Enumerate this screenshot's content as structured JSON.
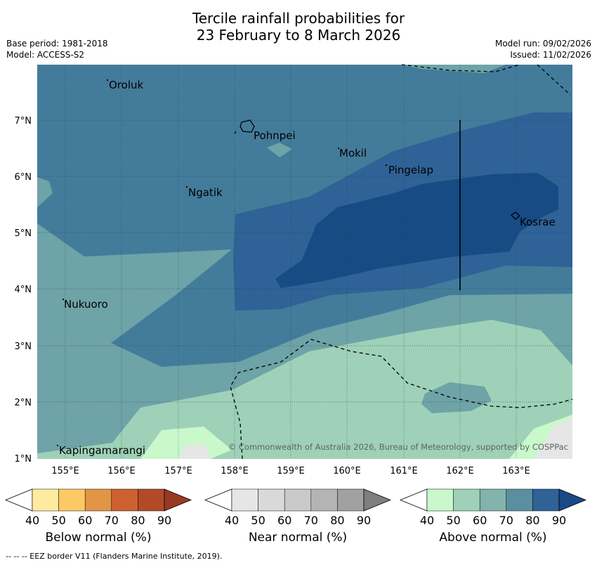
{
  "header": {
    "title_line1": "Tercile rainfall probabilities for",
    "title_line2": "23 February to 8 March 2026",
    "base_period": "Base period: 1981-2018",
    "model": "Model: ACCESS-S2",
    "model_run": "Model run: 09/02/2026",
    "issued": "Issued: 11/02/2026"
  },
  "map": {
    "lon_ticks": [
      "155°E",
      "156°E",
      "157°E",
      "158°E",
      "159°E",
      "160°E",
      "161°E",
      "162°E",
      "163°E"
    ],
    "lat_ticks": [
      "7°N",
      "6°N",
      "5°N",
      "4°N",
      "3°N",
      "2°N",
      "1°N"
    ],
    "places": [
      "Oroluk",
      "Pohnpei",
      "Mokil",
      "Pingelap",
      "Ngatik",
      "Kosrae",
      "Nukuoro",
      "Kapingamarangi"
    ],
    "copyright": "© Commonwealth of Australia 2026, Bureau of Meteorology, supported by COSPPac"
  },
  "colorbars": {
    "ticks": [
      "40",
      "50",
      "60",
      "70",
      "80",
      "90"
    ],
    "below_label": "Below normal (%)",
    "near_label": "Near normal (%)",
    "above_label": "Above normal (%)",
    "below_colors": [
      "#ffffff",
      "#ffeba0",
      "#fdc964",
      "#e29545",
      "#cd6130",
      "#b24a27",
      "#9a3922"
    ],
    "near_colors": [
      "#ffffff",
      "#e6e6e6",
      "#d9d9d9",
      "#c9c9c9",
      "#b4b4b4",
      "#a1a1a1",
      "#7e7e7e"
    ],
    "above_colors": [
      "#ffffff",
      "#c9f8cb",
      "#9ed1b7",
      "#82b3ac",
      "#5a8fa0",
      "#2f6296",
      "#194a86"
    ]
  },
  "footer": {
    "eez_note": "--  --  -- EEZ border V11 (Flanders Marine Institute, 2019)."
  }
}
